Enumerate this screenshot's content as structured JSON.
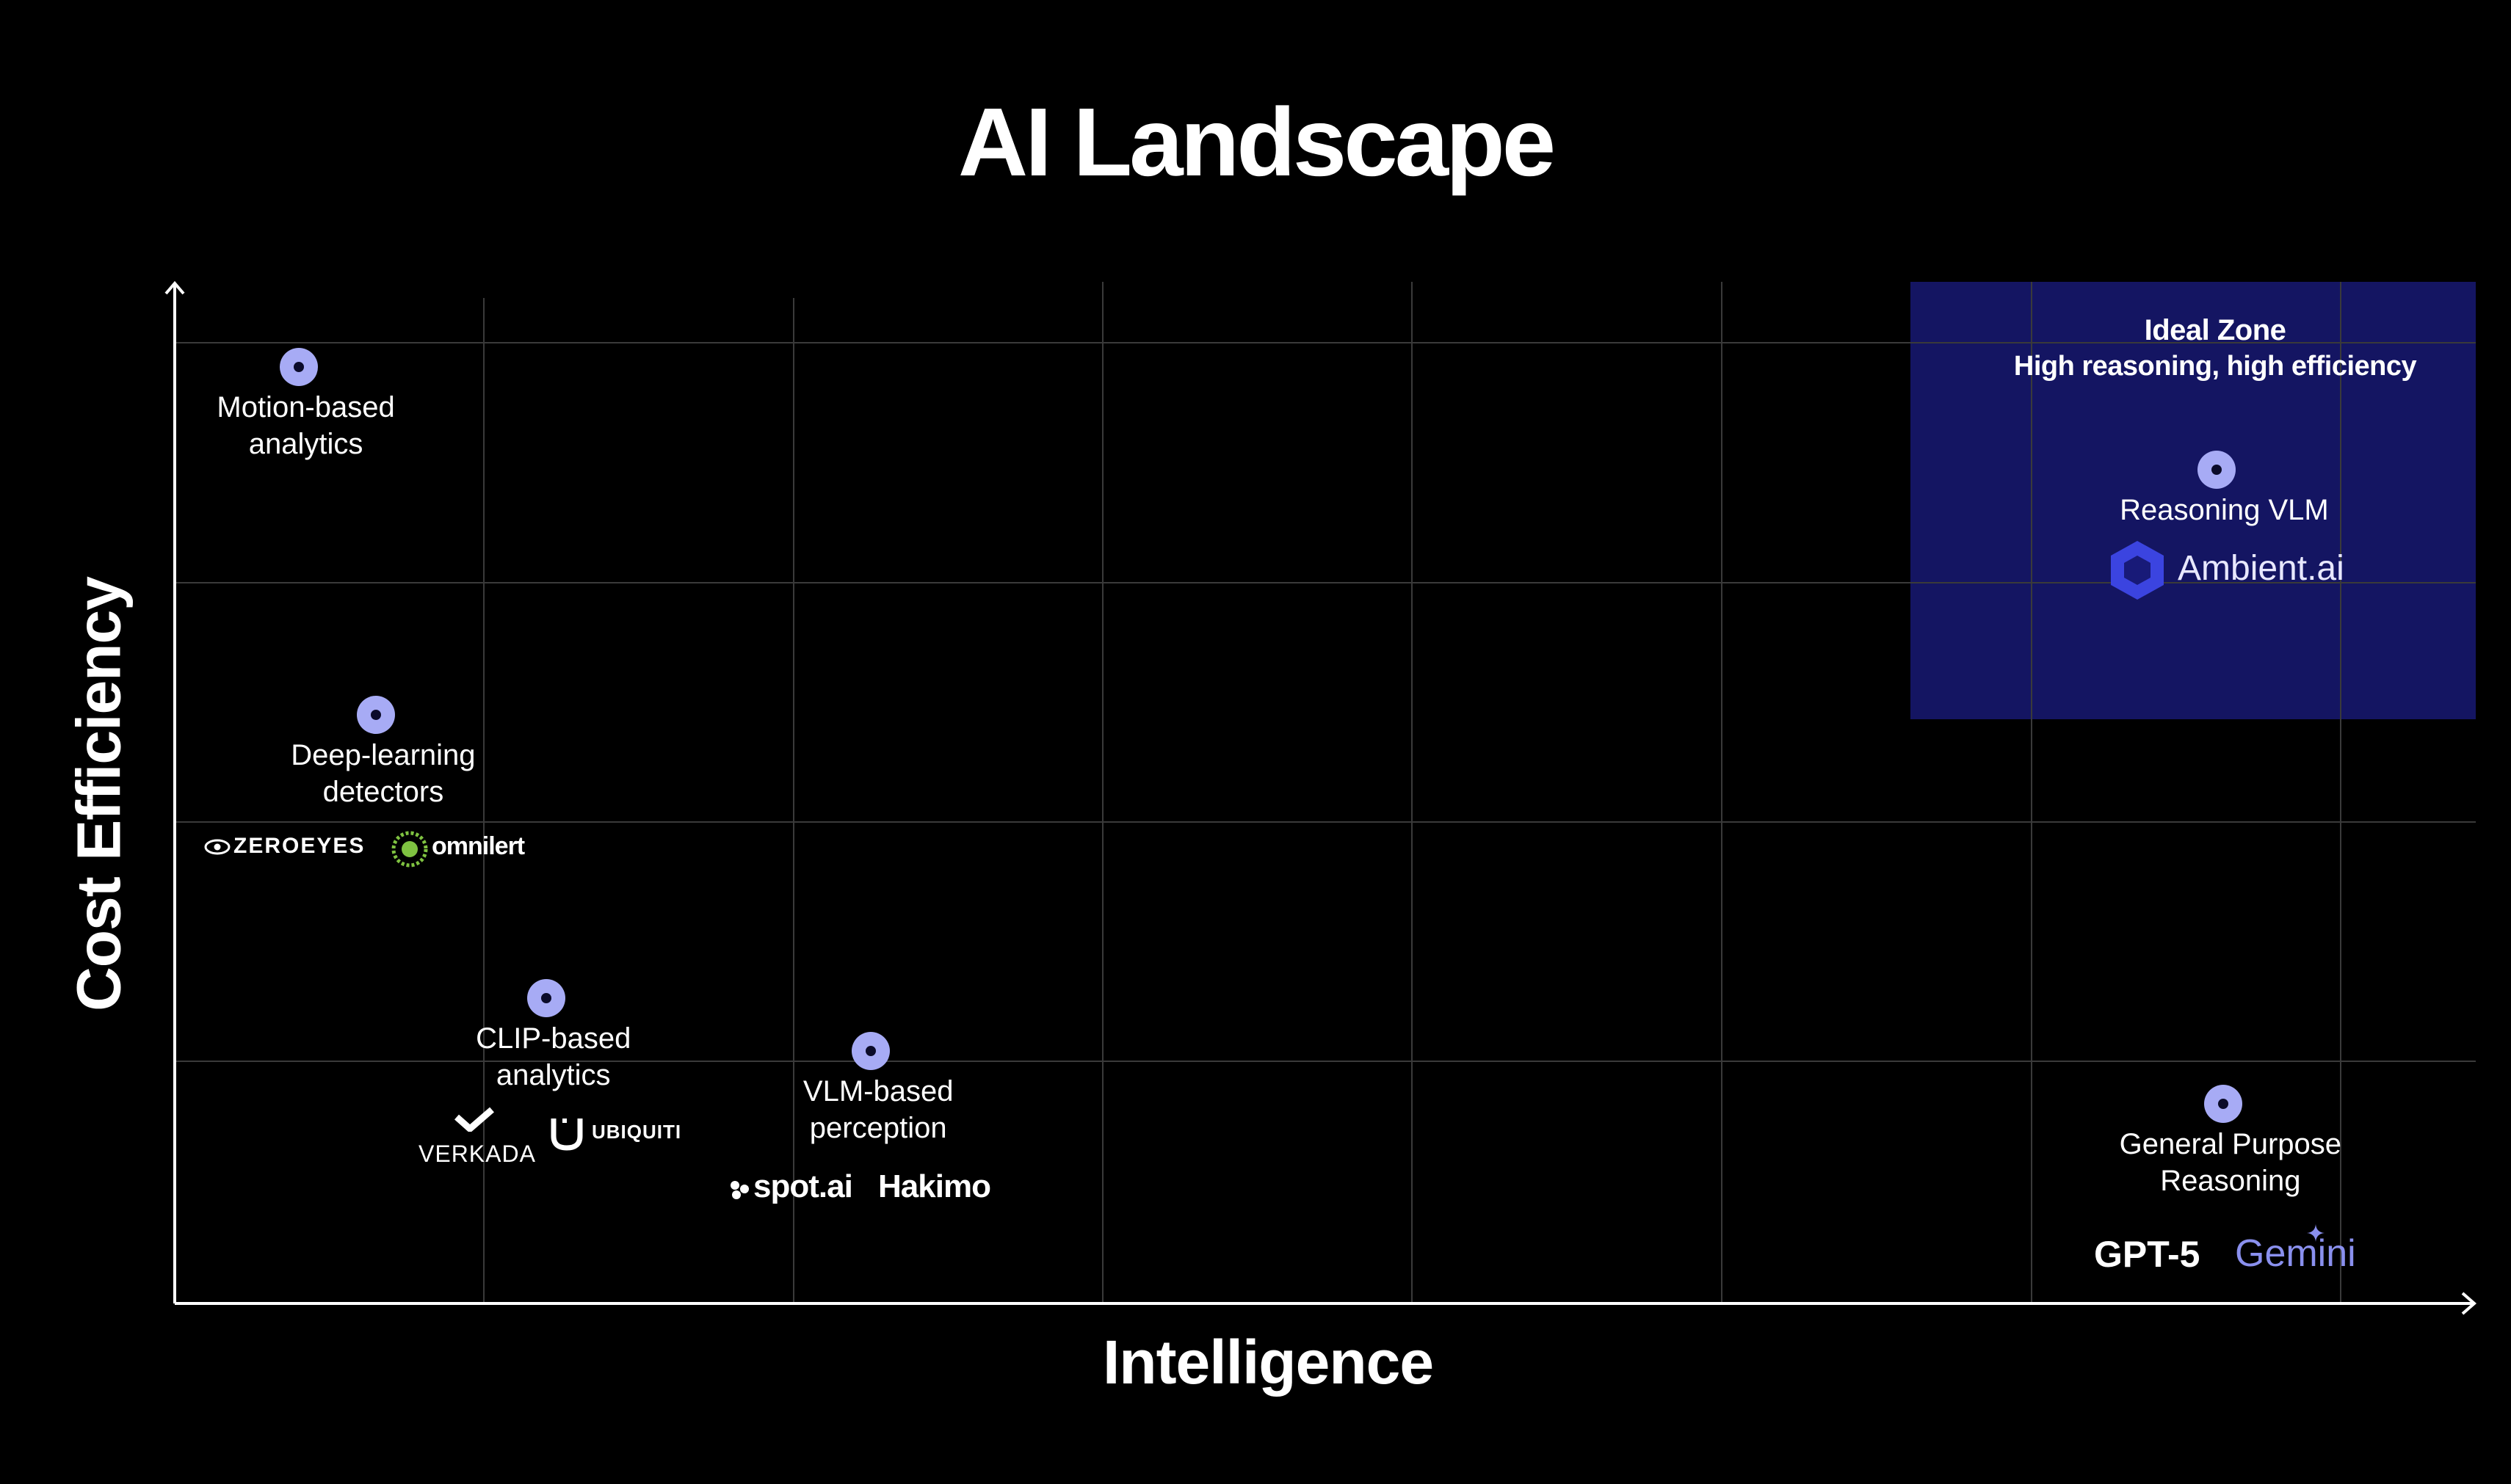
{
  "title": "AI Landscape",
  "axes": {
    "x_label": "Intelligence",
    "y_label": "Cost Efficiency"
  },
  "ideal_zone": {
    "title": "Ideal Zone",
    "subtitle": "High reasoning, high efficiency",
    "color": "#181a78"
  },
  "points": [
    {
      "label_line1": "Motion-based",
      "label_line2": "analytics",
      "intelligence": 0.4,
      "efficiency": 3.9
    },
    {
      "label_line1": "Deep-learning",
      "label_line2": "detectors",
      "intelligence": 0.65,
      "efficiency": 2.45
    },
    {
      "label_line1": "CLIP-based",
      "label_line2": "analytics",
      "intelligence": 1.2,
      "efficiency": 1.27
    },
    {
      "label_line1": "VLM-based",
      "label_line2": "perception",
      "intelligence": 2.25,
      "efficiency": 1.05
    },
    {
      "label_line1": "Reasoning VLM",
      "label_line2": "",
      "intelligence": 6.6,
      "efficiency": 3.47
    },
    {
      "label_line1": "General Purpose",
      "label_line2": "Reasoning",
      "intelligence": 6.62,
      "efficiency": 0.83
    }
  ],
  "logos": {
    "zeroeyes": "ZEROEYES",
    "omnilert": "omnilert",
    "verkada": "VERKADA",
    "ubiquiti": "UBIQUITI",
    "spotai": "spot.ai",
    "hakimo": "Hakimo",
    "ambient": "Ambient.ai",
    "gpt5": "GPT-5",
    "gemini": "Gemini"
  },
  "colors": {
    "marker": "#a7abf5",
    "background": "#000000",
    "gemini": "#8a90ee",
    "ambient_icon": "#3b44e0"
  }
}
